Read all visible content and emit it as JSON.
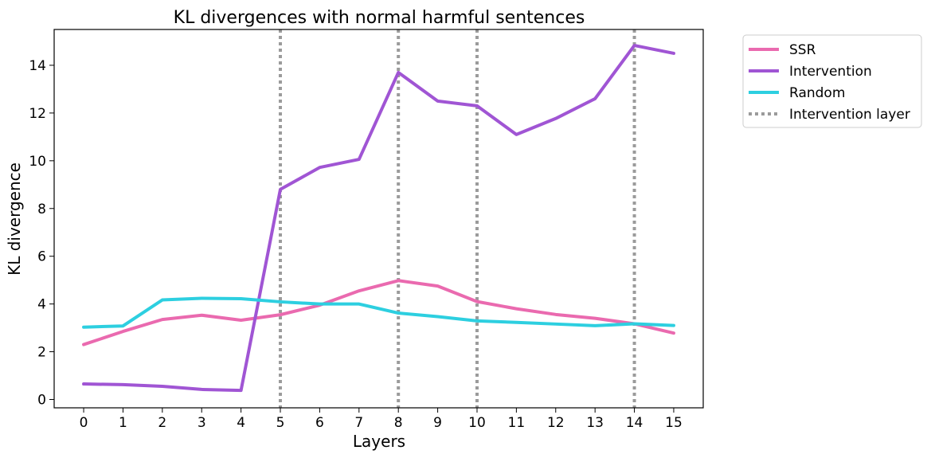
{
  "chart_data": {
    "type": "line",
    "title": "KL divergences with normal harmful sentences",
    "xlabel": "Layers",
    "ylabel": "KL divergence",
    "x": [
      0,
      1,
      2,
      3,
      4,
      5,
      6,
      7,
      8,
      9,
      10,
      11,
      12,
      13,
      14,
      15
    ],
    "x_ticks": [
      "0",
      "1",
      "2",
      "3",
      "4",
      "5",
      "6",
      "7",
      "8",
      "9",
      "10",
      "11",
      "12",
      "13",
      "14",
      "15"
    ],
    "xlim": [
      -0.75,
      15.75
    ],
    "y_ticks": [
      "0",
      "2",
      "4",
      "6",
      "8",
      "10",
      "12",
      "14"
    ],
    "ylim": [
      -0.35,
      15.5
    ],
    "grid": false,
    "legend_placement": "outside right, top",
    "series": [
      {
        "name": "SSR",
        "color": "#ea6aaf",
        "values": [
          2.3,
          2.85,
          3.35,
          3.53,
          3.32,
          3.55,
          3.95,
          4.55,
          4.98,
          4.75,
          4.1,
          3.8,
          3.56,
          3.4,
          3.17,
          2.78
        ]
      },
      {
        "name": "Intervention",
        "color": "#a055d4",
        "values": [
          0.65,
          0.62,
          0.55,
          0.42,
          0.38,
          8.8,
          9.72,
          10.06,
          13.7,
          12.5,
          12.3,
          11.1,
          11.77,
          12.6,
          14.83,
          14.5
        ]
      },
      {
        "name": "Random",
        "color": "#2dcfe0",
        "values": [
          3.03,
          3.08,
          4.17,
          4.24,
          4.22,
          4.09,
          4.0,
          4.0,
          3.62,
          3.47,
          3.29,
          3.23,
          3.16,
          3.09,
          3.17,
          3.1
        ]
      }
    ],
    "intervention_layers": {
      "name": "Intervention layer",
      "color": "#9b9b9b",
      "x": [
        5,
        8,
        10,
        14
      ]
    }
  }
}
